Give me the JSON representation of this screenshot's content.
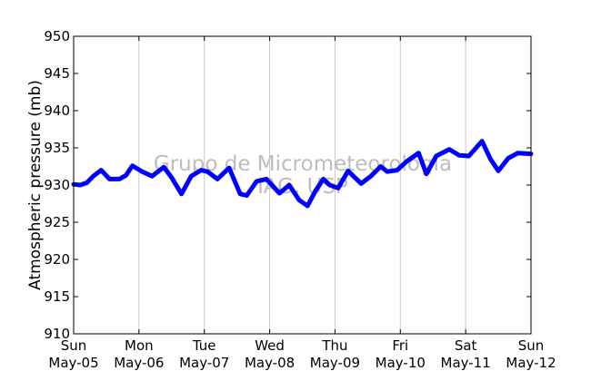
{
  "chart_data": {
    "type": "line",
    "title": "",
    "xlabel": "",
    "ylabel": "Atmospheric pressure (mb)",
    "ylim": [
      910,
      950
    ],
    "yticks": [
      910,
      915,
      920,
      925,
      930,
      935,
      940,
      945,
      950
    ],
    "xlim": [
      0,
      7
    ],
    "xtick_labels": [
      {
        "day": "Sun",
        "date": "May-05"
      },
      {
        "day": "Mon",
        "date": "May-06"
      },
      {
        "day": "Tue",
        "date": "May-07"
      },
      {
        "day": "Wed",
        "date": "May-08"
      },
      {
        "day": "Thu",
        "date": "May-09"
      },
      {
        "day": "Fri",
        "date": "May-10"
      },
      {
        "day": "Sat",
        "date": "May-11"
      },
      {
        "day": "Sun",
        "date": "May-12"
      }
    ],
    "grid": "vertical",
    "line_color": "#0000ff",
    "watermark": [
      "Grupo de Micrometeorologia",
      "IAG, USP"
    ],
    "series": [
      {
        "values": [
          [
            0.0,
            930.1
          ],
          [
            0.1,
            930.0
          ],
          [
            0.2,
            930.3
          ],
          [
            0.3,
            931.2
          ],
          [
            0.42,
            932.0
          ],
          [
            0.55,
            930.8
          ],
          [
            0.7,
            930.8
          ],
          [
            0.8,
            931.3
          ],
          [
            0.9,
            932.6
          ],
          [
            1.05,
            931.8
          ],
          [
            1.2,
            931.2
          ],
          [
            1.38,
            932.4
          ],
          [
            1.5,
            931.0
          ],
          [
            1.65,
            928.8
          ],
          [
            1.8,
            931.2
          ],
          [
            1.95,
            932.0
          ],
          [
            2.05,
            931.8
          ],
          [
            2.2,
            930.8
          ],
          [
            2.38,
            932.3
          ],
          [
            2.55,
            928.8
          ],
          [
            2.65,
            928.6
          ],
          [
            2.8,
            930.5
          ],
          [
            2.95,
            930.8
          ],
          [
            3.15,
            928.9
          ],
          [
            3.3,
            930.0
          ],
          [
            3.45,
            928.0
          ],
          [
            3.58,
            927.2
          ],
          [
            3.7,
            929.2
          ],
          [
            3.82,
            930.8
          ],
          [
            3.92,
            930.0
          ],
          [
            4.05,
            929.6
          ],
          [
            4.2,
            931.9
          ],
          [
            4.4,
            930.2
          ],
          [
            4.55,
            931.2
          ],
          [
            4.7,
            932.5
          ],
          [
            4.8,
            931.8
          ],
          [
            4.95,
            932.0
          ],
          [
            5.1,
            933.2
          ],
          [
            5.28,
            934.3
          ],
          [
            5.4,
            931.5
          ],
          [
            5.55,
            933.9
          ],
          [
            5.75,
            934.8
          ],
          [
            5.9,
            934.0
          ],
          [
            6.05,
            933.9
          ],
          [
            6.25,
            935.9
          ],
          [
            6.38,
            933.5
          ],
          [
            6.5,
            931.9
          ],
          [
            6.65,
            933.6
          ],
          [
            6.8,
            934.3
          ],
          [
            7.0,
            934.2
          ]
        ]
      }
    ]
  }
}
